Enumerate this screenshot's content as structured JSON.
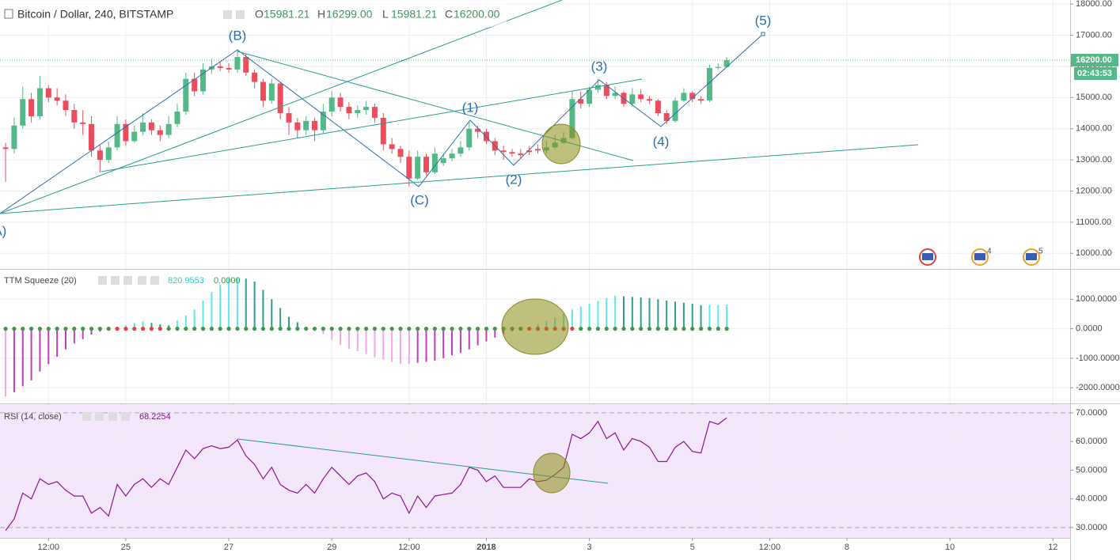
{
  "chart_data": [
    {
      "type": "candlestick",
      "title": "Bitcoin / Dollar, 240, BITSTAMP",
      "ohlc_legend": [
        {
          "key": "O",
          "value": "15981.21"
        },
        {
          "key": "H",
          "value": "16299.00"
        },
        {
          "key": "L",
          "value": "15981.21"
        },
        {
          "key": "C",
          "value": "16200.00"
        }
      ],
      "open": [
        13400,
        13350,
        14100,
        14950,
        14400,
        15300,
        15000,
        14900,
        14600,
        14200,
        14150,
        13300,
        13000,
        13400,
        14150,
        13600,
        13900,
        14200,
        13950,
        13800,
        14150,
        14550,
        15600,
        15200,
        15900,
        16000,
        15950,
        15900,
        16300,
        15800,
        15500,
        14900,
        15450,
        14500,
        14200,
        13950,
        14250,
        13950,
        14550,
        15000,
        14700,
        14500,
        14600,
        14700,
        14350,
        13500,
        13350,
        13100,
        12400,
        13100,
        12600,
        12900,
        13050,
        13200,
        13400,
        14000,
        13900,
        13600,
        13300,
        13250,
        13200,
        13300,
        13350,
        13300,
        13400,
        13550,
        13700,
        14950,
        14800,
        15250,
        15400,
        15050,
        15150,
        14800,
        15100,
        14950,
        14900,
        14500,
        14250,
        14900,
        15150,
        14950,
        14900,
        15950,
        15981.21
      ],
      "high": [
        13550,
        14350,
        15350,
        15150,
        15700,
        15400,
        15300,
        15100,
        14800,
        14600,
        14400,
        13500,
        13600,
        14400,
        14300,
        14100,
        14500,
        14300,
        14100,
        14400,
        14800,
        15800,
        15800,
        16100,
        16250,
        16150,
        16100,
        16500,
        16400,
        15900,
        15600,
        15600,
        15500,
        14700,
        14350,
        14400,
        14350,
        14800,
        15200,
        15150,
        14850,
        14750,
        14900,
        14800,
        14500,
        13700,
        13450,
        13300,
        13300,
        13200,
        13400,
        13200,
        13350,
        13600,
        14250,
        14100,
        14000,
        13700,
        13450,
        13350,
        13350,
        13450,
        13500,
        13600,
        13800,
        13900,
        15200,
        15200,
        15350,
        15600,
        15500,
        15350,
        15200,
        15300,
        15250,
        15050,
        14950,
        14600,
        15000,
        15300,
        15200,
        15050,
        16050,
        16100,
        16299
      ],
      "low": [
        12300,
        13200,
        14000,
        14200,
        14300,
        14850,
        14750,
        14400,
        14000,
        13800,
        13100,
        12600,
        12900,
        13300,
        13450,
        13550,
        13800,
        13800,
        13600,
        13700,
        14050,
        14450,
        15050,
        15100,
        15750,
        15850,
        15800,
        15800,
        15700,
        15300,
        14700,
        14800,
        14300,
        13800,
        13700,
        13800,
        13600,
        13850,
        14400,
        14550,
        14300,
        14350,
        14450,
        14200,
        13300,
        13200,
        12900,
        12150,
        12350,
        12500,
        12550,
        12800,
        12950,
        13100,
        13300,
        13700,
        13500,
        13150,
        13000,
        13100,
        13050,
        13150,
        13200,
        13200,
        13350,
        13500,
        13650,
        14650,
        14700,
        15150,
        14950,
        14950,
        14700,
        14700,
        14850,
        14800,
        14400,
        14150,
        14200,
        14850,
        14850,
        14800,
        14850,
        15900,
        15981.21
      ],
      "close": [
        13350,
        14100,
        14950,
        14400,
        15300,
        15000,
        14900,
        14600,
        14200,
        14150,
        13300,
        13000,
        13400,
        14150,
        13600,
        13900,
        14200,
        13950,
        13800,
        14150,
        14550,
        15600,
        15200,
        15900,
        16000,
        15950,
        15900,
        16300,
        15800,
        15500,
        14900,
        15450,
        14500,
        14200,
        13950,
        14250,
        13950,
        14550,
        15000,
        14700,
        14500,
        14600,
        14700,
        14350,
        13500,
        13350,
        13100,
        12400,
        13100,
        12600,
        13200,
        13050,
        13200,
        13400,
        14000,
        13900,
        13600,
        13300,
        13250,
        13200,
        13150,
        13250,
        13300,
        13400,
        13550,
        13700,
        14950,
        14800,
        15250,
        15400,
        15050,
        15150,
        14800,
        15100,
        14950,
        14900,
        14500,
        14250,
        14900,
        15150,
        14950,
        14900,
        15950,
        15981.21,
        16200
      ],
      "up_color": "#53b987",
      "down_color": "#eb4d5c",
      "xlim": [
        -0.65,
        124
      ],
      "xticks": [
        {
          "value": 5,
          "label": "12:00"
        },
        {
          "value": 14,
          "label": "25"
        },
        {
          "value": 26,
          "label": "27"
        },
        {
          "value": 38,
          "label": "29"
        },
        {
          "value": 47,
          "label": "12:00"
        },
        {
          "value": 56,
          "label": "2018"
        },
        {
          "value": 68,
          "label": "3"
        },
        {
          "value": 80,
          "label": "5"
        },
        {
          "value": 89,
          "label": "12:00"
        },
        {
          "value": 98,
          "label": "8"
        },
        {
          "value": 110,
          "label": "10"
        },
        {
          "value": 122,
          "label": "12"
        }
      ],
      "ylim": [
        9500,
        18130
      ],
      "yticks": [
        {
          "value": 10000,
          "label": "10000.00"
        },
        {
          "value": 11000,
          "label": "11000.00"
        },
        {
          "value": 12000,
          "label": "12000.00"
        },
        {
          "value": 13000,
          "label": "13000.00"
        },
        {
          "value": 14000,
          "label": "14000.00"
        },
        {
          "value": 15000,
          "label": "15000.00"
        },
        {
          "value": 16000,
          "label": "16000.00"
        },
        {
          "value": 17000,
          "label": "17000.00"
        },
        {
          "value": 18000,
          "label": "18000.00"
        }
      ],
      "grid": true,
      "last_price": {
        "value": 16200,
        "label": "16200.00"
      },
      "countdown": "02:43:53",
      "annotations": [
        "(A)",
        "(B)",
        "(C)",
        "(1)",
        "(2)",
        "(3)",
        "(4)",
        "(5)"
      ],
      "event_badges": [
        "4",
        "5"
      ]
    },
    {
      "type": "histogram",
      "title": "TTM Squeeze (20)",
      "legend_values": [
        "820.9553",
        "0.0000"
      ],
      "values": [
        -2300,
        -2150,
        -1950,
        -1750,
        -1450,
        -1200,
        -950,
        -700,
        -500,
        -350,
        -200,
        -100,
        -50,
        50,
        120,
        200,
        250,
        200,
        150,
        120,
        280,
        450,
        650,
        950,
        1250,
        1500,
        1700,
        1720,
        1700,
        1600,
        1320,
        1000,
        700,
        400,
        220,
        30,
        -80,
        -180,
        -380,
        -550,
        -680,
        -760,
        -860,
        -960,
        -1050,
        -1120,
        -1180,
        -1200,
        -1150,
        -1120,
        -1080,
        -1000,
        -900,
        -820,
        -700,
        -560,
        -430,
        -300,
        -180,
        -80,
        -20,
        60,
        160,
        260,
        380,
        520,
        650,
        760,
        850,
        940,
        1040,
        1120,
        1100,
        1080,
        1060,
        1040,
        1000,
        960,
        920,
        880,
        850,
        800,
        810,
        815,
        820.9553
      ],
      "squeeze": [
        0,
        0,
        0,
        0,
        0,
        0,
        0,
        0,
        0,
        0,
        0,
        0,
        0,
        1,
        1,
        1,
        1,
        1,
        1,
        0,
        0,
        0,
        0,
        0,
        0,
        0,
        0,
        0,
        0,
        0,
        0,
        0,
        0,
        0,
        0,
        0,
        0,
        0,
        0,
        0,
        0,
        0,
        0,
        0,
        0,
        0,
        0,
        0,
        0,
        0,
        0,
        0,
        0,
        0,
        0,
        0,
        0,
        0,
        0,
        0,
        0,
        1,
        1,
        1,
        1,
        1,
        1,
        0,
        0,
        0,
        0,
        0,
        0,
        0,
        0,
        0,
        0,
        0,
        0,
        0,
        0,
        0,
        0,
        0,
        0
      ],
      "colors": {
        "above_rising": "#5fe6ef",
        "above_falling": "#2f9c8f",
        "below_falling": "#f3a6ea",
        "below_rising": "#c23cbc",
        "dot_off": "#3d9a45",
        "dot_on": "#f23b3b"
      },
      "ylim": [
        -2530,
        2000
      ],
      "yticks": [
        {
          "value": -2000,
          "label": "-2000.0000"
        },
        {
          "value": -1000,
          "label": "-1000.0000"
        },
        {
          "value": 0,
          "label": "0.0000"
        },
        {
          "value": 1000,
          "label": "1000.0000"
        }
      ],
      "grid": true
    },
    {
      "type": "line",
      "title": "RSI (14, close)",
      "legend_values": [
        "68.2254"
      ],
      "values": [
        29,
        33,
        42,
        40,
        47,
        45,
        46,
        43,
        41,
        41,
        35,
        37,
        34,
        45,
        41,
        45,
        47,
        44,
        47,
        45,
        51,
        57,
        54,
        57.5,
        58.5,
        57.5,
        58,
        60.5,
        55,
        52,
        47,
        51,
        45,
        43,
        42,
        45,
        42,
        47,
        51,
        48,
        45,
        48,
        49,
        46,
        40,
        42,
        41,
        35,
        41,
        37,
        41,
        41.5,
        42,
        45,
        51,
        50,
        46,
        48,
        44,
        44,
        44,
        47,
        46,
        46.5,
        48.5,
        51,
        62.5,
        61,
        63,
        67,
        61,
        63,
        57,
        61,
        60,
        58,
        53,
        53,
        58,
        60,
        56.5,
        56,
        67,
        66,
        68.2254
      ],
      "color": "#8e1599",
      "background": "#f4e6fb",
      "band": [
        30,
        70
      ],
      "ylim": [
        26.4,
        73
      ],
      "yticks": [
        {
          "value": 30,
          "label": "30.0000"
        },
        {
          "value": 40,
          "label": "40.0000"
        },
        {
          "value": 50,
          "label": "50.0000"
        },
        {
          "value": 60,
          "label": "60.0000"
        },
        {
          "value": 70,
          "label": "70.0000"
        }
      ],
      "grid": true
    }
  ]
}
